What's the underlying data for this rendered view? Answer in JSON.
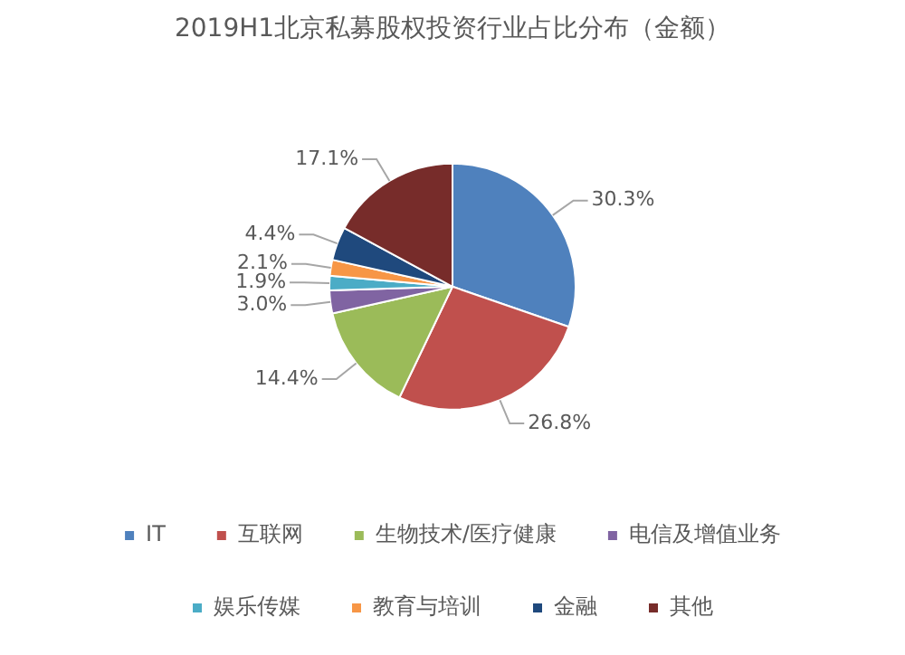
{
  "chart_data": {
    "type": "pie",
    "title": "2019H1北京私募股权投资行业占比分布（金额）",
    "categories": [
      "IT",
      "互联网",
      "生物技术/医疗健康",
      "电信及增值业务",
      "娱乐传媒",
      "教育与培训",
      "金融",
      "其他"
    ],
    "values": [
      30.3,
      26.8,
      14.4,
      3.0,
      1.9,
      2.1,
      4.4,
      17.1
    ],
    "colors": [
      "#4f81bd",
      "#c0504d",
      "#9bbb59",
      "#8064a2",
      "#4bacc6",
      "#f79646",
      "#1f497d",
      "#772c2a"
    ],
    "value_labels": [
      "30.3%",
      "26.8%",
      "14.4%",
      "3.0%",
      "1.9%",
      "2.1%",
      "4.4%",
      "17.1%"
    ],
    "legend": "bottom"
  }
}
